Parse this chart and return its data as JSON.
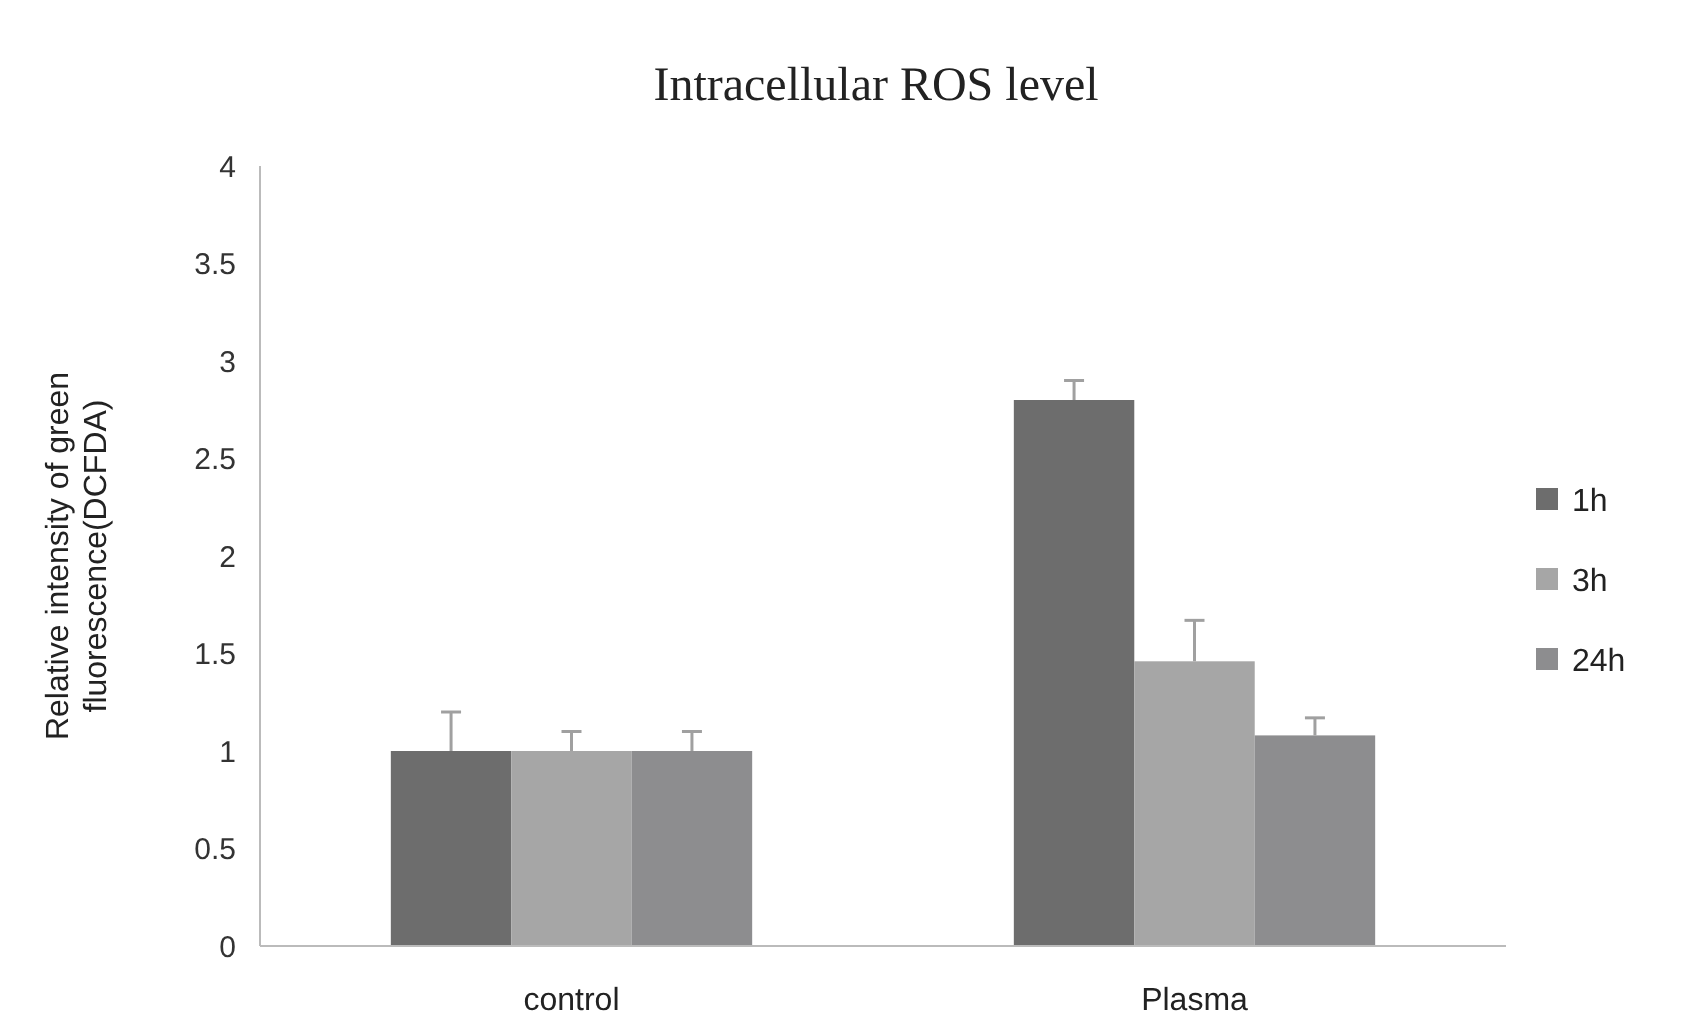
{
  "chart_data": {
    "type": "bar",
    "title": "Intracellular ROS level",
    "ylabel": "Relative intensity of green fluorescence(DCFDA)",
    "categories": [
      "control",
      "Plasma"
    ],
    "series": [
      {
        "name": "1h",
        "color": "#6d6d6d",
        "values": [
          1,
          2.8
        ],
        "errors": [
          [
            1,
            1.2
          ],
          [
            2.8,
            2.9
          ]
        ]
      },
      {
        "name": "3h",
        "color": "#a6a6a6",
        "values": [
          1,
          1.46
        ],
        "errors": [
          [
            1,
            1.1
          ],
          [
            1.46,
            1.67
          ]
        ]
      },
      {
        "name": "24h",
        "color": "#8d8d8f",
        "values": [
          1,
          1.08
        ],
        "errors": [
          [
            1,
            1.1
          ],
          [
            1.08,
            1.17
          ]
        ]
      }
    ],
    "ylim": [
      0,
      4
    ],
    "yticks": [
      0,
      {
        "value": 0.5,
        "label": "0.5"
      },
      1,
      {
        "value": 1.5,
        "label": "1.5"
      },
      2,
      {
        "value": 2.5,
        "label": "2.5"
      },
      3,
      {
        "value": 3.5,
        "label": "3.5"
      },
      4
    ],
    "grid": false,
    "legend": "right"
  }
}
